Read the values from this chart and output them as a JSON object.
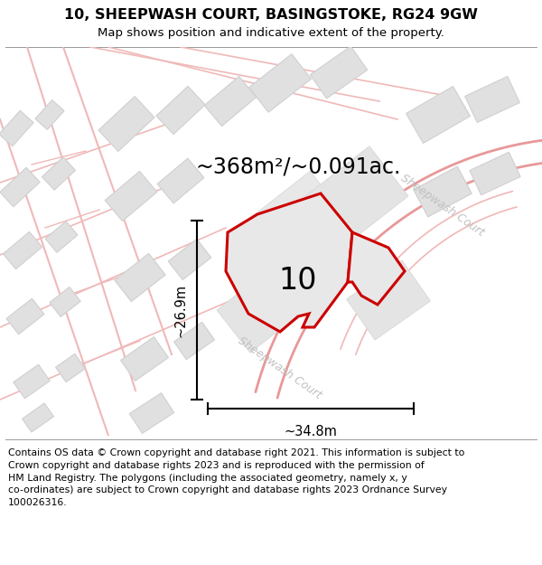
{
  "title": "10, SHEEPWASH COURT, BASINGSTOKE, RG24 9GW",
  "subtitle": "Map shows position and indicative extent of the property.",
  "area_text": "~368m²/~0.091ac.",
  "width_label": "~34.8m",
  "height_label": "~26.9m",
  "number_label": "10",
  "street_label_center": "Sheepwash Court",
  "street_label_right": "Sheepwash Court",
  "footer_line1": "Contains OS data © Crown copyright and database right 2021. This information is subject to",
  "footer_line2": "Crown copyright and database rights 2023 and is reproduced with the permission of",
  "footer_line3": "HM Land Registry. The polygons (including the associated geometry, namely x, y",
  "footer_line4": "co-ordinates) are subject to Crown copyright and database rights 2023 Ordnance Survey",
  "footer_line5": "100026316.",
  "bg_color": "#ffffff",
  "map_bg": "#ffffff",
  "road_color": "#f0b8b8",
  "road_color2": "#e89898",
  "building_fill": "#e0e0e0",
  "building_stroke": "#d0d0d0",
  "plot_fill": "#e8e8e8",
  "plot_color": "#cc0000",
  "dim_color": "#000000",
  "text_color": "#000000",
  "street_text_color": "#c0c0c0",
  "title_fontsize": 11.5,
  "subtitle_fontsize": 9.5,
  "area_fontsize": 17,
  "number_fontsize": 24,
  "dim_fontsize": 10.5,
  "footer_fontsize": 7.8
}
